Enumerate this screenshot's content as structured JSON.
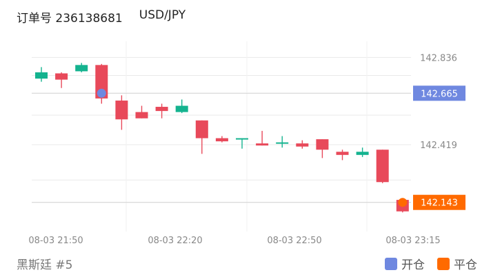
{
  "header": {
    "order_label": "订单号 236138681",
    "pair": "USD/JPY"
  },
  "footer": {
    "account": "黑斯廷 #5"
  },
  "legend": {
    "open_label": "开仓",
    "close_label": "平仓",
    "open_color": "#6f88e0",
    "close_color": "#ff6a00"
  },
  "colors": {
    "up": "#14b38f",
    "down": "#e8495a",
    "grid": "#e9e9e9",
    "axis_text": "#888888"
  },
  "chart_data": {
    "type": "candlestick",
    "title": "",
    "xlabel": "",
    "ylabel": "",
    "y_ticks": [
      142.836,
      142.419
    ],
    "x_tick_labels": [
      "08-03 21:50",
      "08-03 22:20",
      "08-03 22:50",
      "08-03 23:15"
    ],
    "ylim": [
      142.03,
      142.9
    ],
    "candles": [
      {
        "open": 142.735,
        "close": 142.765,
        "high": 142.79,
        "low": 142.72
      },
      {
        "open": 142.76,
        "close": 142.73,
        "high": 142.765,
        "low": 142.69
      },
      {
        "open": 142.77,
        "close": 142.8,
        "high": 142.81,
        "low": 142.765
      },
      {
        "open": 142.8,
        "close": 142.64,
        "high": 142.805,
        "low": 142.615
      },
      {
        "open": 142.63,
        "close": 142.54,
        "high": 142.655,
        "low": 142.49
      },
      {
        "open": 142.575,
        "close": 142.545,
        "high": 142.605,
        "low": 142.545
      },
      {
        "open": 142.6,
        "close": 142.58,
        "high": 142.615,
        "low": 142.545
      },
      {
        "open": 142.575,
        "close": 142.605,
        "high": 142.635,
        "low": 142.57
      },
      {
        "open": 142.535,
        "close": 142.45,
        "high": 142.535,
        "low": 142.375
      },
      {
        "open": 142.45,
        "close": 142.435,
        "high": 142.46,
        "low": 142.43
      },
      {
        "open": 142.45,
        "close": 142.45,
        "high": 142.45,
        "low": 142.4
      },
      {
        "open": 142.425,
        "close": 142.415,
        "high": 142.485,
        "low": 142.415
      },
      {
        "open": 142.43,
        "close": 142.43,
        "high": 142.46,
        "low": 142.405
      },
      {
        "open": 142.425,
        "close": 142.41,
        "high": 142.44,
        "low": 142.4
      },
      {
        "open": 142.445,
        "close": 142.395,
        "high": 142.445,
        "low": 142.355
      },
      {
        "open": 142.385,
        "close": 142.37,
        "high": 142.395,
        "low": 142.345
      },
      {
        "open": 142.37,
        "close": 142.385,
        "high": 142.405,
        "low": 142.36
      },
      {
        "open": 142.395,
        "close": 142.24,
        "high": 142.395,
        "low": 142.235
      },
      {
        "open": 142.155,
        "close": 142.1,
        "high": 142.155,
        "low": 142.095
      }
    ],
    "open_price": 142.665,
    "close_price": 142.143,
    "open_candle_index": 3,
    "close_candle_index": 18
  }
}
